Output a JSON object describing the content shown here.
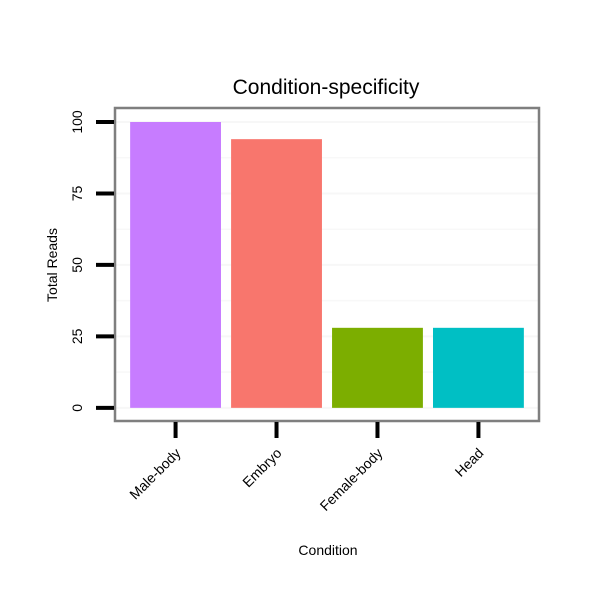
{
  "chart_data": {
    "type": "bar",
    "title": "Condition-specificity",
    "xlabel": "Condition",
    "ylabel": "Total Reads",
    "categories": [
      "Male-body",
      "Embryo",
      "Female-body",
      "Head"
    ],
    "values": [
      100,
      94,
      28,
      28
    ],
    "colors": [
      "#C77CFF",
      "#F8766D",
      "#7CAE00",
      "#00BFC4"
    ],
    "yticks": [
      0,
      25,
      50,
      75,
      100
    ],
    "ytick_labels": [
      "0",
      "25",
      "50",
      "75",
      "100"
    ],
    "ylim": [
      -4.6,
      104.9
    ],
    "grid": true,
    "legend": "none"
  }
}
